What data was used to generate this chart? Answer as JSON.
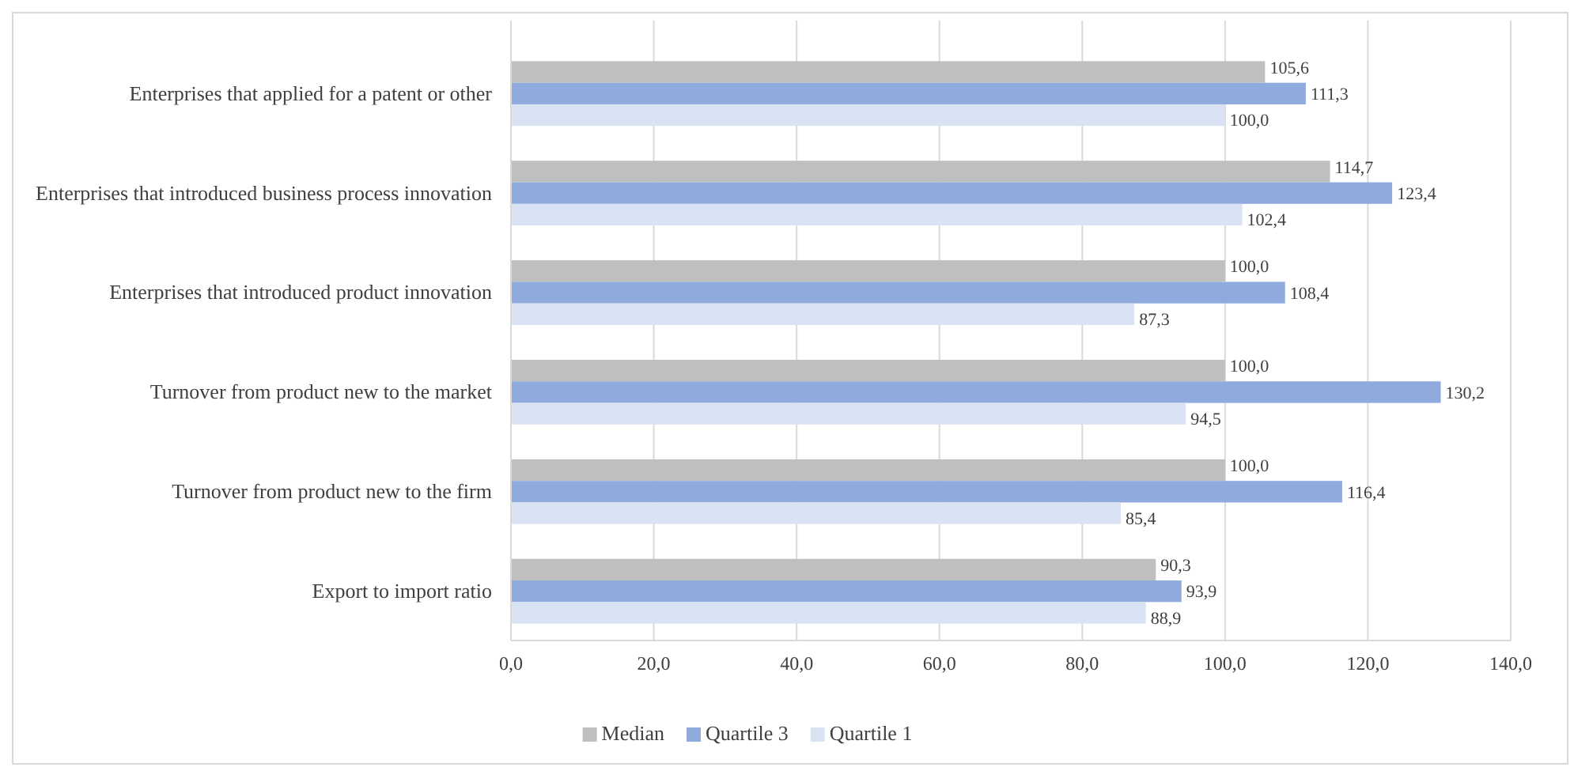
{
  "chart_data": {
    "type": "bar",
    "orientation": "horizontal",
    "categories": [
      "Enterprises that applied for a patent or other",
      "Enterprises that introduced business process innovation",
      "Enterprises that introduced product innovation",
      "Turnover from product new to the market",
      "Turnover from product new to the firm",
      "Export to import ratio"
    ],
    "series": [
      {
        "name": "Median",
        "color": "#bfbfbf",
        "values": [
          105.6,
          114.7,
          100.0,
          100.0,
          100.0,
          90.3
        ],
        "value_labels": [
          "105,6",
          "114,7",
          "100,0",
          "100,0",
          "100,0",
          "90,3"
        ]
      },
      {
        "name": "Quartile 3",
        "color": "#8faadc",
        "values": [
          111.3,
          123.4,
          108.4,
          130.2,
          116.4,
          93.9
        ],
        "value_labels": [
          "111,3",
          "123,4",
          "108,4",
          "130,2",
          "116,4",
          "93,9"
        ]
      },
      {
        "name": "Quartile 1",
        "color": "#dae3f3",
        "values": [
          100.0,
          102.4,
          87.3,
          94.5,
          85.4,
          88.9
        ],
        "value_labels": [
          "100,0",
          "102,4",
          "87,3",
          "94,5",
          "85,4",
          "88,9"
        ]
      }
    ],
    "xlim": [
      0,
      140
    ],
    "xticks": [
      {
        "value": 0,
        "label": "0,0"
      },
      {
        "value": 20,
        "label": "20,0"
      },
      {
        "value": 40,
        "label": "40,0"
      },
      {
        "value": 60,
        "label": "60,0"
      },
      {
        "value": 80,
        "label": "80,0"
      },
      {
        "value": 100,
        "label": "100,0"
      },
      {
        "value": 120,
        "label": "120,0"
      },
      {
        "value": 140,
        "label": "140,0"
      }
    ],
    "grid": "x",
    "legend": "bottom"
  }
}
